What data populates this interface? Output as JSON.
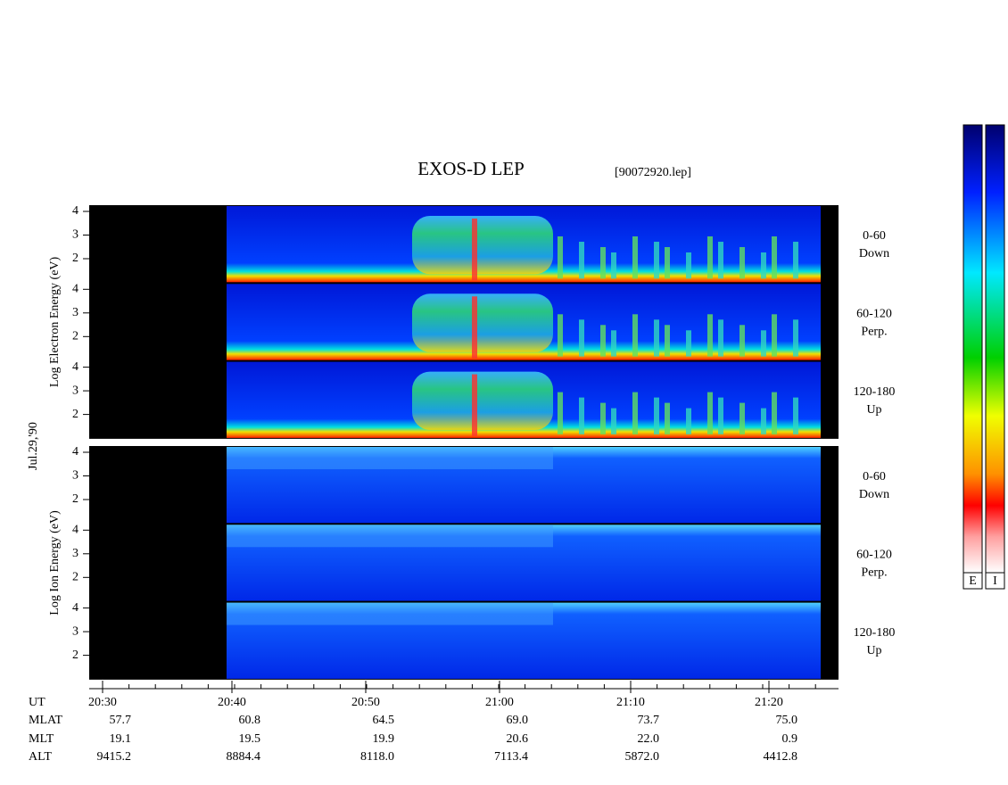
{
  "header": {
    "title": "EXOS-D LEP",
    "file": "[90072920.lep]"
  },
  "date": "Jul.29,'90",
  "groups": [
    {
      "label": "Log Electron Energy (eV)",
      "panels": [
        {
          "range": "0-60",
          "direction": "Down"
        },
        {
          "range": "60-120",
          "direction": "Perp."
        },
        {
          "range": "120-180",
          "direction": "Up"
        }
      ]
    },
    {
      "label": "Log Ion Energy (eV)",
      "panels": [
        {
          "range": "0-60",
          "direction": "Down"
        },
        {
          "range": "60-120",
          "direction": "Perp."
        },
        {
          "range": "120-180",
          "direction": "Up"
        }
      ]
    }
  ],
  "yticks": [
    "4",
    "3",
    "2"
  ],
  "axis": {
    "rows": [
      {
        "label": "UT",
        "values": [
          "20:30",
          "20:40",
          "20:50",
          "21:00",
          "21:10",
          "21:20"
        ]
      },
      {
        "label": "MLAT",
        "values": [
          "57.7",
          "60.8",
          "64.5",
          "69.0",
          "73.7",
          "75.0"
        ]
      },
      {
        "label": "MLT",
        "values": [
          "19.1",
          "19.5",
          "19.9",
          "20.6",
          "22.0",
          "0.9"
        ]
      },
      {
        "label": "ALT",
        "values": [
          "9415.2",
          "8884.4",
          "8118.0",
          "7113.4",
          "5872.0",
          "4412.8"
        ]
      }
    ]
  },
  "colorbar": [
    "E",
    "I"
  ]
}
